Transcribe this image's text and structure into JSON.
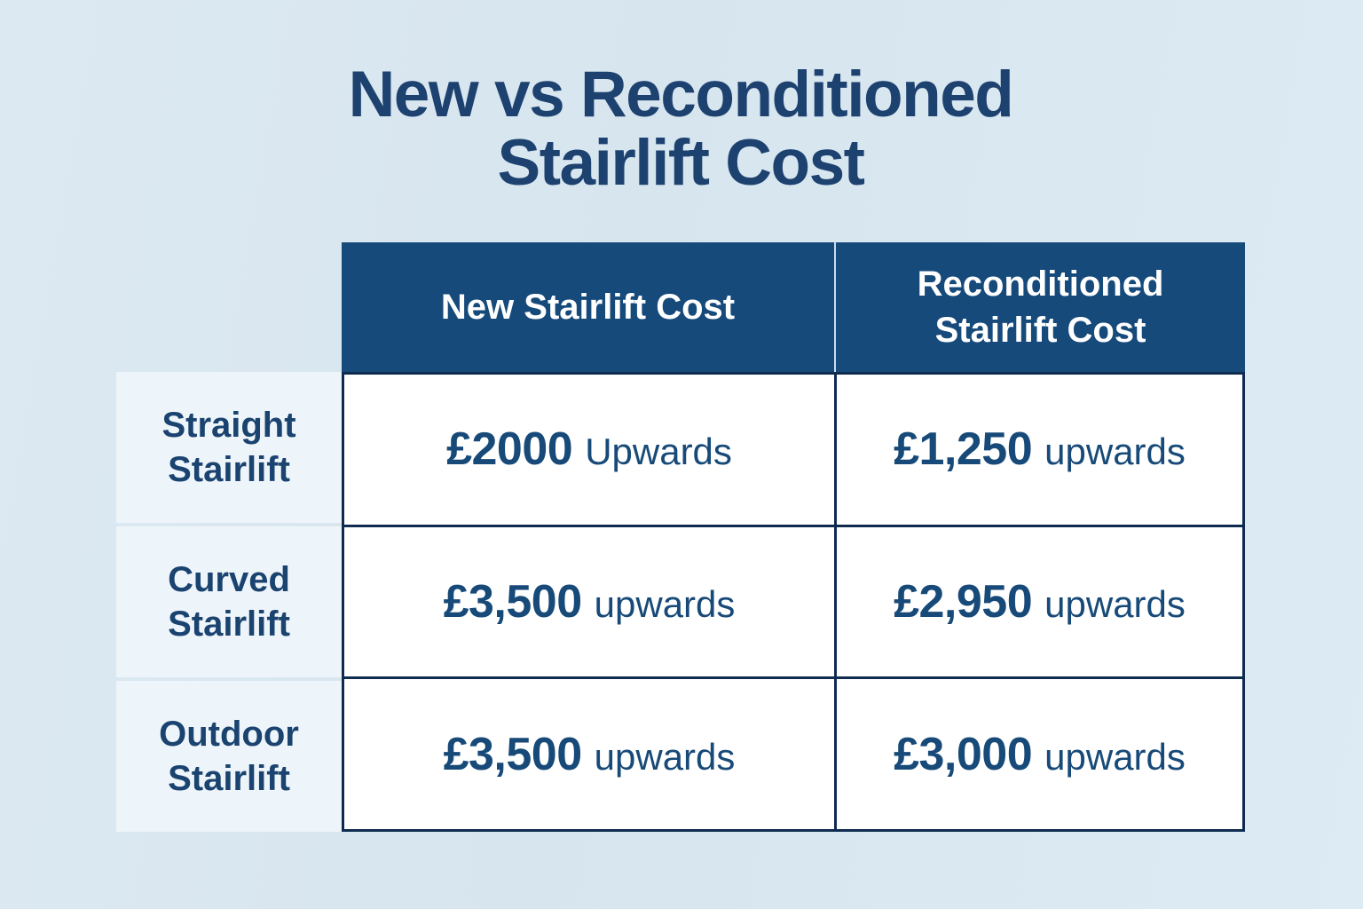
{
  "page": {
    "title_line1": "New vs Reconditioned",
    "title_line2": "Stairlift Cost"
  },
  "colors": {
    "page_background": "#d8e6ef",
    "title_text": "#1d4270",
    "header_background": "#164a7b",
    "header_text": "#ffffff",
    "cell_border": "#0f2c50",
    "label_panel_background": "#eef5fa",
    "cell_background": "#ffffff",
    "price_text": "#174a78"
  },
  "table": {
    "column_headers": [
      "New Stairlift Cost",
      "Reconditioned Stairlift Cost"
    ],
    "rows": [
      {
        "label": "Straight Stairlift",
        "new_cost": "£2000",
        "new_suffix": "Upwards",
        "recon_cost": "£1,250",
        "recon_suffix": "upwards"
      },
      {
        "label": "Curved Stairlift",
        "new_cost": "£3,500",
        "new_suffix": "upwards",
        "recon_cost": "£2,950",
        "recon_suffix": "upwards"
      },
      {
        "label": "Outdoor Stairlift",
        "new_cost": "£3,500",
        "new_suffix": "upwards",
        "recon_cost": "£3,000",
        "recon_suffix": "upwards"
      }
    ]
  },
  "chart_data": {
    "type": "table",
    "title": "New vs Reconditioned Stairlift Cost",
    "columns": [
      "",
      "New Stairlift Cost",
      "Reconditioned Stairlift Cost"
    ],
    "rows": [
      [
        "Straight Stairlift",
        "£2000 Upwards",
        "£1,250 upwards"
      ],
      [
        "Curved Stairlift",
        "£3,500 upwards",
        "£2,950 upwards"
      ],
      [
        "Outdoor Stairlift",
        "£3,500 upwards",
        "£3,000 upwards"
      ]
    ],
    "numeric_values_gbp": {
      "currency": "GBP",
      "new_stairlift_cost": [
        2000,
        3500,
        3500
      ],
      "reconditioned_stairlift_cost": [
        1250,
        2950,
        3000
      ]
    },
    "layout": {
      "header_position": "top",
      "row_labels_position": "left",
      "grid": "on"
    }
  }
}
